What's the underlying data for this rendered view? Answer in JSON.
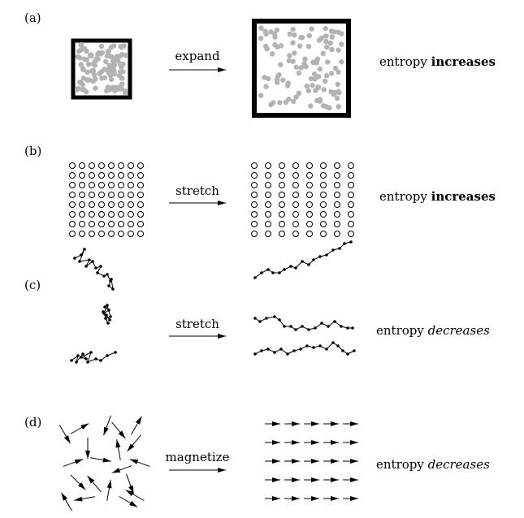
{
  "panels": [
    {
      "label": "(a)",
      "process": "expand",
      "result_prefix": "entropy ",
      "result_word": "increases",
      "result_style": "bold"
    },
    {
      "label": "(b)",
      "process": "stretch",
      "result_prefix": "entropy ",
      "result_word": "increases",
      "result_style": "bold"
    },
    {
      "label": "(c)",
      "process": "stretch",
      "result_prefix": "entropy ",
      "result_word": "decreases",
      "result_style": "italic"
    },
    {
      "label": "(d)",
      "process": "magnetize",
      "result_prefix": "entropy ",
      "result_word": "decreases",
      "result_style": "italic"
    }
  ],
  "colors": {
    "ink": "#000000",
    "particle": "#b3b3b3"
  }
}
